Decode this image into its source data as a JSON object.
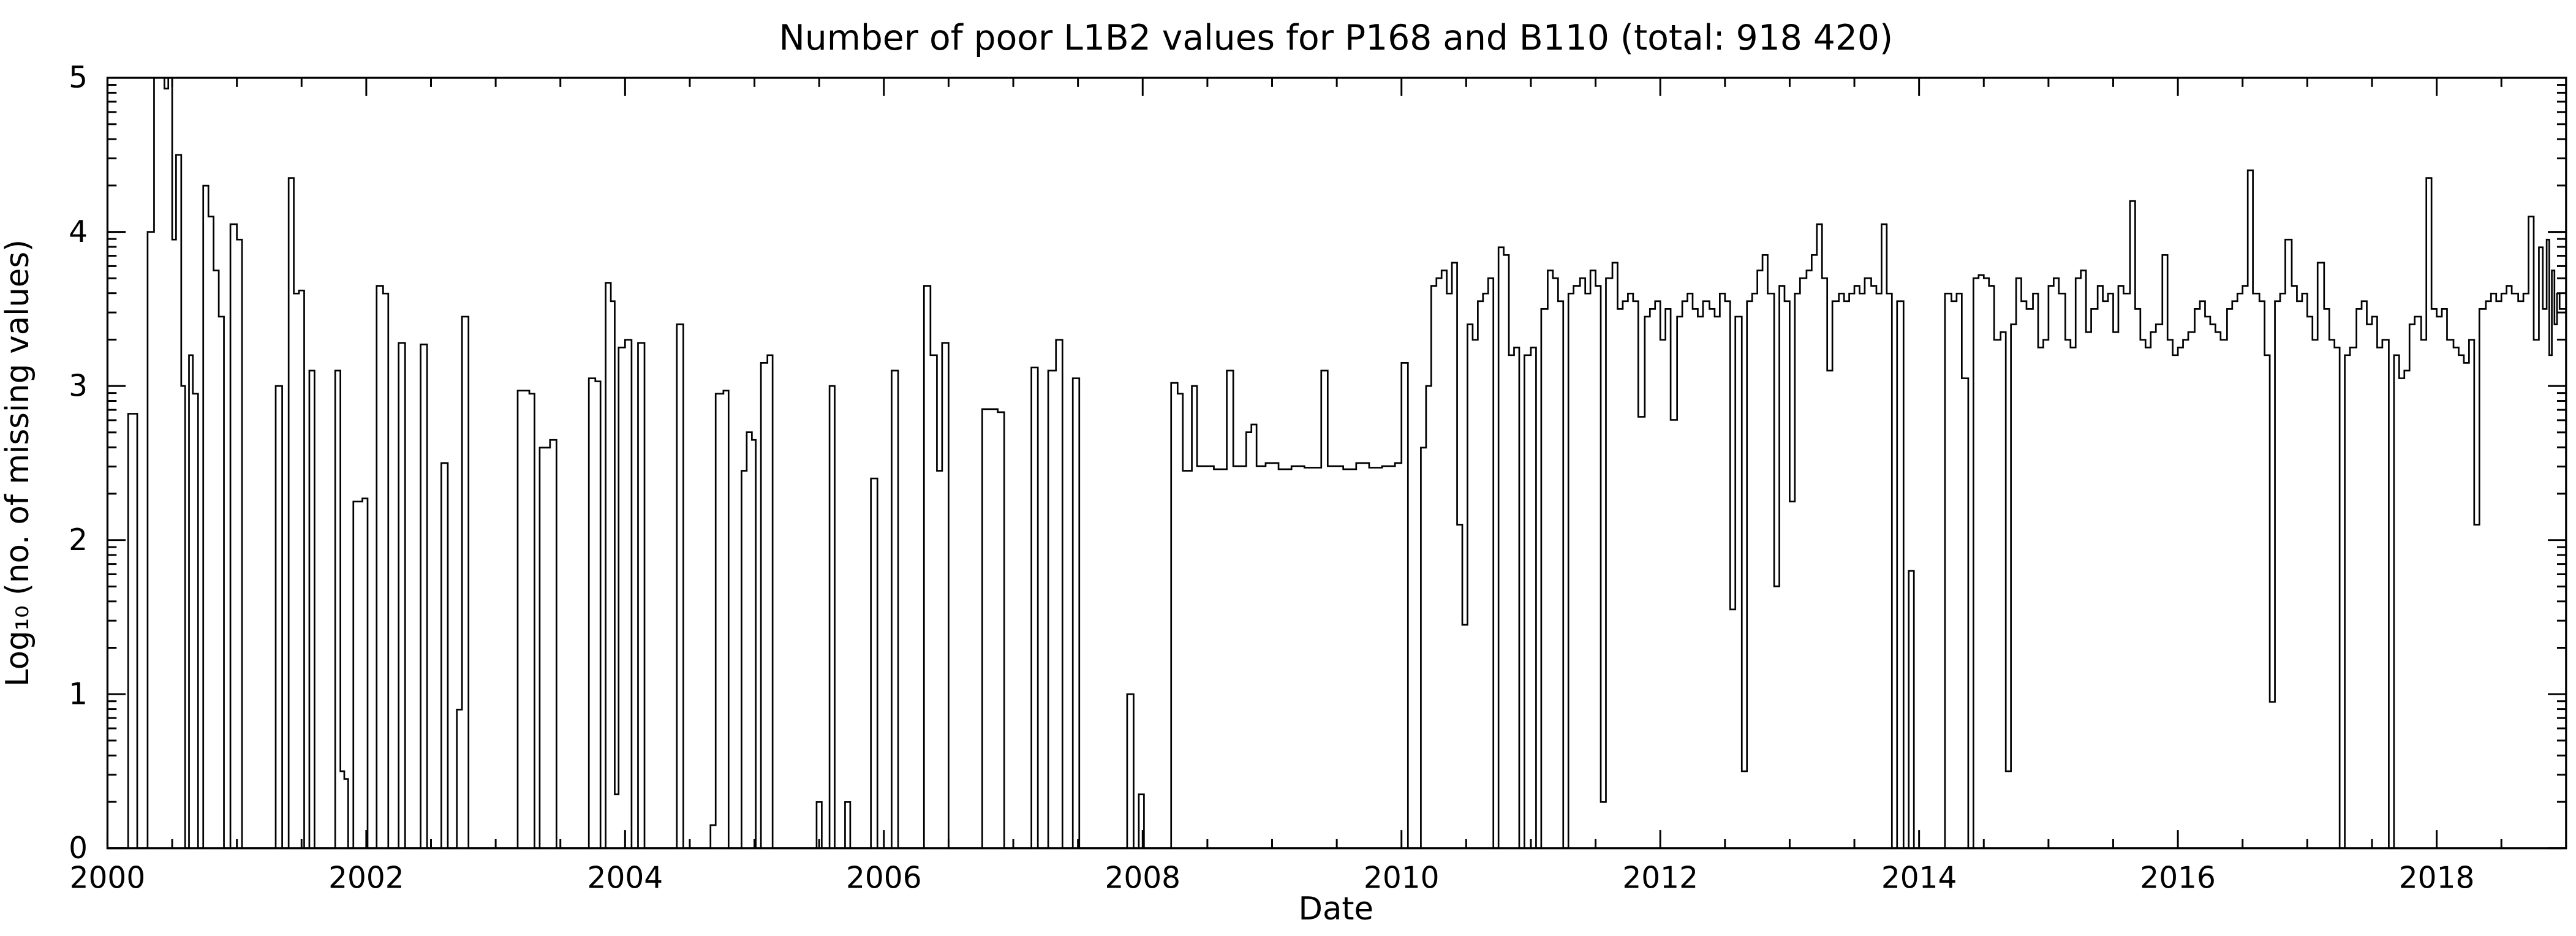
{
  "chart_data": {
    "type": "line",
    "step": "post",
    "title": "Number of poor L1B2 values for P168 and B110 (total: 918 420)",
    "xlabel": "Date",
    "ylabel": "Log10 (no. of missing values)",
    "ylabel_display": "Log₁₀ (no. of missing values)",
    "xlim": [
      2000,
      2019
    ],
    "ylim": [
      0,
      5
    ],
    "xticks": [
      2000,
      2002,
      2004,
      2006,
      2008,
      2010,
      2012,
      2014,
      2016,
      2018
    ],
    "xtick_labels": [
      "2000",
      "2002",
      "2004",
      "2006",
      "2008",
      "2010",
      "2012",
      "2014",
      "2016",
      "2018"
    ],
    "xticks_minor_step": 0.5,
    "yticks": [
      0,
      1,
      2,
      3,
      4,
      5
    ],
    "ytick_labels": [
      "0",
      "1",
      "2",
      "3",
      "4",
      "5"
    ],
    "yticks_minor": "log-decade (n + log10(k), k=2..9)",
    "grid": false,
    "legend": false,
    "tick_direction": "in",
    "background": "#ffffff",
    "line_color": "#000000",
    "points": [
      [
        2000.0,
        0
      ],
      [
        2000.16,
        2.82
      ],
      [
        2000.23,
        0
      ],
      [
        2000.31,
        4.0
      ],
      [
        2000.36,
        5.0
      ],
      [
        2000.44,
        4.93
      ],
      [
        2000.47,
        5.0
      ],
      [
        2000.5,
        3.95
      ],
      [
        2000.53,
        4.5
      ],
      [
        2000.57,
        3.0
      ],
      [
        2000.6,
        0
      ],
      [
        2000.63,
        3.2
      ],
      [
        2000.66,
        2.95
      ],
      [
        2000.7,
        0
      ],
      [
        2000.74,
        4.3
      ],
      [
        2000.78,
        4.1
      ],
      [
        2000.82,
        3.75
      ],
      [
        2000.86,
        3.45
      ],
      [
        2000.9,
        0
      ],
      [
        2000.95,
        4.05
      ],
      [
        2001.0,
        3.95
      ],
      [
        2001.04,
        0
      ],
      [
        2001.3,
        3.0
      ],
      [
        2001.35,
        0
      ],
      [
        2001.4,
        4.35
      ],
      [
        2001.44,
        3.6
      ],
      [
        2001.48,
        3.62
      ],
      [
        2001.52,
        0
      ],
      [
        2001.56,
        3.1
      ],
      [
        2001.6,
        0
      ],
      [
        2001.76,
        3.1
      ],
      [
        2001.8,
        0.5
      ],
      [
        2001.83,
        0.45
      ],
      [
        2001.86,
        0
      ],
      [
        2001.9,
        2.25
      ],
      [
        2001.97,
        2.27
      ],
      [
        2002.01,
        0
      ],
      [
        2002.08,
        3.65
      ],
      [
        2002.13,
        3.6
      ],
      [
        2002.17,
        0
      ],
      [
        2002.25,
        3.28
      ],
      [
        2002.3,
        0
      ],
      [
        2002.42,
        3.27
      ],
      [
        2002.47,
        0
      ],
      [
        2002.58,
        2.5
      ],
      [
        2002.63,
        0
      ],
      [
        2002.7,
        0.9
      ],
      [
        2002.74,
        3.45
      ],
      [
        2002.79,
        0
      ],
      [
        2003.17,
        2.97
      ],
      [
        2003.26,
        2.95
      ],
      [
        2003.3,
        0
      ],
      [
        2003.34,
        2.6
      ],
      [
        2003.42,
        2.65
      ],
      [
        2003.47,
        0
      ],
      [
        2003.72,
        3.05
      ],
      [
        2003.77,
        3.03
      ],
      [
        2003.81,
        0
      ],
      [
        2003.85,
        3.67
      ],
      [
        2003.89,
        3.55
      ],
      [
        2003.92,
        0.35
      ],
      [
        2003.95,
        3.25
      ],
      [
        2004.0,
        3.3
      ],
      [
        2004.05,
        0
      ],
      [
        2004.1,
        3.28
      ],
      [
        2004.15,
        0
      ],
      [
        2004.4,
        3.4
      ],
      [
        2004.45,
        0
      ],
      [
        2004.66,
        0.15
      ],
      [
        2004.7,
        2.95
      ],
      [
        2004.76,
        2.97
      ],
      [
        2004.8,
        0
      ],
      [
        2004.9,
        2.45
      ],
      [
        2004.94,
        2.7
      ],
      [
        2004.98,
        2.65
      ],
      [
        2005.01,
        0
      ],
      [
        2005.05,
        3.15
      ],
      [
        2005.1,
        3.2
      ],
      [
        2005.14,
        0
      ],
      [
        2005.48,
        0.3
      ],
      [
        2005.52,
        0
      ],
      [
        2005.58,
        3.0
      ],
      [
        2005.62,
        0
      ],
      [
        2005.7,
        0.3
      ],
      [
        2005.74,
        0
      ],
      [
        2005.9,
        2.4
      ],
      [
        2005.95,
        0
      ],
      [
        2006.06,
        3.1
      ],
      [
        2006.11,
        0
      ],
      [
        2006.31,
        3.65
      ],
      [
        2006.36,
        3.2
      ],
      [
        2006.41,
        2.45
      ],
      [
        2006.45,
        3.28
      ],
      [
        2006.5,
        0
      ],
      [
        2006.76,
        2.85
      ],
      [
        2006.88,
        2.83
      ],
      [
        2006.93,
        0
      ],
      [
        2007.14,
        3.12
      ],
      [
        2007.19,
        0
      ],
      [
        2007.27,
        3.1
      ],
      [
        2007.33,
        3.3
      ],
      [
        2007.38,
        0
      ],
      [
        2007.46,
        3.05
      ],
      [
        2007.51,
        0
      ],
      [
        2007.88,
        1.0
      ],
      [
        2007.93,
        0
      ],
      [
        2007.97,
        0.35
      ],
      [
        2008.01,
        0
      ],
      [
        2008.22,
        3.02
      ],
      [
        2008.27,
        2.95
      ],
      [
        2008.31,
        2.45
      ],
      [
        2008.38,
        3.0
      ],
      [
        2008.42,
        2.48
      ],
      [
        2008.55,
        2.46
      ],
      [
        2008.65,
        3.1
      ],
      [
        2008.7,
        2.48
      ],
      [
        2008.8,
        2.7
      ],
      [
        2008.84,
        2.75
      ],
      [
        2008.88,
        2.48
      ],
      [
        2008.95,
        2.5
      ],
      [
        2009.05,
        2.46
      ],
      [
        2009.15,
        2.48
      ],
      [
        2009.25,
        2.47
      ],
      [
        2009.38,
        3.1
      ],
      [
        2009.43,
        2.48
      ],
      [
        2009.55,
        2.46
      ],
      [
        2009.65,
        2.5
      ],
      [
        2009.75,
        2.47
      ],
      [
        2009.85,
        2.48
      ],
      [
        2009.95,
        2.5
      ],
      [
        2010.0,
        3.15
      ],
      [
        2010.05,
        0
      ],
      [
        2010.15,
        2.6
      ],
      [
        2010.19,
        3.0
      ],
      [
        2010.23,
        3.65
      ],
      [
        2010.27,
        3.7
      ],
      [
        2010.31,
        3.75
      ],
      [
        2010.35,
        3.6
      ],
      [
        2010.39,
        3.8
      ],
      [
        2010.43,
        2.1
      ],
      [
        2010.47,
        1.45
      ],
      [
        2010.51,
        3.4
      ],
      [
        2010.55,
        3.3
      ],
      [
        2010.59,
        3.55
      ],
      [
        2010.63,
        3.6
      ],
      [
        2010.67,
        3.7
      ],
      [
        2010.71,
        0
      ],
      [
        2010.75,
        3.9
      ],
      [
        2010.79,
        3.85
      ],
      [
        2010.83,
        3.2
      ],
      [
        2010.87,
        3.25
      ],
      [
        2010.91,
        0
      ],
      [
        2010.95,
        3.2
      ],
      [
        2011.0,
        3.25
      ],
      [
        2011.04,
        0
      ],
      [
        2011.08,
        3.5
      ],
      [
        2011.13,
        3.75
      ],
      [
        2011.17,
        3.7
      ],
      [
        2011.21,
        3.55
      ],
      [
        2011.25,
        0
      ],
      [
        2011.29,
        3.6
      ],
      [
        2011.33,
        3.65
      ],
      [
        2011.38,
        3.7
      ],
      [
        2011.42,
        3.6
      ],
      [
        2011.46,
        3.75
      ],
      [
        2011.5,
        3.65
      ],
      [
        2011.54,
        0.3
      ],
      [
        2011.58,
        3.7
      ],
      [
        2011.63,
        3.8
      ],
      [
        2011.67,
        3.5
      ],
      [
        2011.71,
        3.55
      ],
      [
        2011.75,
        3.6
      ],
      [
        2011.79,
        3.55
      ],
      [
        2011.83,
        2.8
      ],
      [
        2011.88,
        3.45
      ],
      [
        2011.92,
        3.5
      ],
      [
        2011.96,
        3.55
      ],
      [
        2012.0,
        3.3
      ],
      [
        2012.04,
        3.5
      ],
      [
        2012.08,
        2.78
      ],
      [
        2012.13,
        3.45
      ],
      [
        2012.17,
        3.55
      ],
      [
        2012.21,
        3.6
      ],
      [
        2012.25,
        3.5
      ],
      [
        2012.29,
        3.45
      ],
      [
        2012.33,
        3.55
      ],
      [
        2012.38,
        3.5
      ],
      [
        2012.42,
        3.45
      ],
      [
        2012.46,
        3.6
      ],
      [
        2012.5,
        3.55
      ],
      [
        2012.54,
        1.55
      ],
      [
        2012.58,
        3.45
      ],
      [
        2012.63,
        0.5
      ],
      [
        2012.67,
        3.55
      ],
      [
        2012.71,
        3.6
      ],
      [
        2012.75,
        3.75
      ],
      [
        2012.79,
        3.85
      ],
      [
        2012.83,
        3.6
      ],
      [
        2012.88,
        1.7
      ],
      [
        2012.92,
        3.65
      ],
      [
        2012.96,
        3.55
      ],
      [
        2013.0,
        2.25
      ],
      [
        2013.04,
        3.6
      ],
      [
        2013.08,
        3.7
      ],
      [
        2013.13,
        3.75
      ],
      [
        2013.17,
        3.85
      ],
      [
        2013.21,
        4.05
      ],
      [
        2013.25,
        3.7
      ],
      [
        2013.29,
        3.1
      ],
      [
        2013.33,
        3.55
      ],
      [
        2013.38,
        3.6
      ],
      [
        2013.42,
        3.55
      ],
      [
        2013.46,
        3.6
      ],
      [
        2013.5,
        3.65
      ],
      [
        2013.54,
        3.6
      ],
      [
        2013.58,
        3.7
      ],
      [
        2013.63,
        3.65
      ],
      [
        2013.67,
        3.6
      ],
      [
        2013.71,
        4.05
      ],
      [
        2013.75,
        3.6
      ],
      [
        2013.79,
        0
      ],
      [
        2013.83,
        3.55
      ],
      [
        2013.88,
        0
      ],
      [
        2013.92,
        1.8
      ],
      [
        2013.96,
        0
      ],
      [
        2014.2,
        3.6
      ],
      [
        2014.25,
        3.55
      ],
      [
        2014.29,
        3.6
      ],
      [
        2014.33,
        3.05
      ],
      [
        2014.38,
        0
      ],
      [
        2014.42,
        3.7
      ],
      [
        2014.46,
        3.72
      ],
      [
        2014.5,
        3.7
      ],
      [
        2014.54,
        3.65
      ],
      [
        2014.58,
        3.3
      ],
      [
        2014.63,
        3.35
      ],
      [
        2014.67,
        0.5
      ],
      [
        2014.71,
        3.4
      ],
      [
        2014.75,
        3.7
      ],
      [
        2014.79,
        3.55
      ],
      [
        2014.83,
        3.5
      ],
      [
        2014.88,
        3.6
      ],
      [
        2014.92,
        3.25
      ],
      [
        2014.96,
        3.3
      ],
      [
        2015.0,
        3.65
      ],
      [
        2015.04,
        3.7
      ],
      [
        2015.08,
        3.6
      ],
      [
        2015.13,
        3.3
      ],
      [
        2015.17,
        3.25
      ],
      [
        2015.21,
        3.7
      ],
      [
        2015.25,
        3.75
      ],
      [
        2015.29,
        3.35
      ],
      [
        2015.33,
        3.5
      ],
      [
        2015.38,
        3.65
      ],
      [
        2015.42,
        3.55
      ],
      [
        2015.46,
        3.6
      ],
      [
        2015.5,
        3.35
      ],
      [
        2015.54,
        3.65
      ],
      [
        2015.58,
        3.6
      ],
      [
        2015.63,
        4.2
      ],
      [
        2015.67,
        3.5
      ],
      [
        2015.71,
        3.3
      ],
      [
        2015.75,
        3.25
      ],
      [
        2015.79,
        3.35
      ],
      [
        2015.83,
        3.4
      ],
      [
        2015.88,
        3.85
      ],
      [
        2015.92,
        3.3
      ],
      [
        2015.96,
        3.2
      ],
      [
        2016.0,
        3.25
      ],
      [
        2016.04,
        3.3
      ],
      [
        2016.08,
        3.35
      ],
      [
        2016.13,
        3.5
      ],
      [
        2016.17,
        3.55
      ],
      [
        2016.21,
        3.45
      ],
      [
        2016.25,
        3.4
      ],
      [
        2016.29,
        3.35
      ],
      [
        2016.33,
        3.3
      ],
      [
        2016.38,
        3.5
      ],
      [
        2016.42,
        3.55
      ],
      [
        2016.46,
        3.6
      ],
      [
        2016.5,
        3.65
      ],
      [
        2016.54,
        4.4
      ],
      [
        2016.58,
        3.6
      ],
      [
        2016.63,
        3.55
      ],
      [
        2016.67,
        3.2
      ],
      [
        2016.71,
        0.95
      ],
      [
        2016.75,
        3.55
      ],
      [
        2016.79,
        3.6
      ],
      [
        2016.83,
        3.95
      ],
      [
        2016.88,
        3.65
      ],
      [
        2016.92,
        3.55
      ],
      [
        2016.96,
        3.6
      ],
      [
        2017.0,
        3.45
      ],
      [
        2017.04,
        3.3
      ],
      [
        2017.08,
        3.8
      ],
      [
        2017.13,
        3.5
      ],
      [
        2017.17,
        3.3
      ],
      [
        2017.21,
        3.25
      ],
      [
        2017.25,
        0
      ],
      [
        2017.29,
        3.2
      ],
      [
        2017.33,
        3.25
      ],
      [
        2017.38,
        3.5
      ],
      [
        2017.42,
        3.55
      ],
      [
        2017.46,
        3.4
      ],
      [
        2017.5,
        3.45
      ],
      [
        2017.54,
        3.25
      ],
      [
        2017.58,
        3.3
      ],
      [
        2017.63,
        0
      ],
      [
        2017.67,
        3.2
      ],
      [
        2017.71,
        3.05
      ],
      [
        2017.75,
        3.1
      ],
      [
        2017.79,
        3.4
      ],
      [
        2017.83,
        3.45
      ],
      [
        2017.88,
        3.3
      ],
      [
        2017.92,
        4.35
      ],
      [
        2017.96,
        3.5
      ],
      [
        2018.0,
        3.45
      ],
      [
        2018.04,
        3.5
      ],
      [
        2018.08,
        3.3
      ],
      [
        2018.13,
        3.25
      ],
      [
        2018.17,
        3.2
      ],
      [
        2018.21,
        3.15
      ],
      [
        2018.25,
        3.3
      ],
      [
        2018.29,
        2.1
      ],
      [
        2018.33,
        3.5
      ],
      [
        2018.38,
        3.55
      ],
      [
        2018.42,
        3.6
      ],
      [
        2018.46,
        3.55
      ],
      [
        2018.5,
        3.6
      ],
      [
        2018.54,
        3.65
      ],
      [
        2018.58,
        3.6
      ],
      [
        2018.63,
        3.55
      ],
      [
        2018.67,
        3.6
      ],
      [
        2018.71,
        4.1
      ],
      [
        2018.75,
        3.3
      ],
      [
        2018.79,
        3.9
      ],
      [
        2018.82,
        3.5
      ],
      [
        2018.85,
        3.95
      ],
      [
        2018.87,
        3.2
      ],
      [
        2018.89,
        3.75
      ],
      [
        2018.91,
        3.4
      ],
      [
        2018.93,
        3.6
      ],
      [
        2018.95,
        3.5
      ]
    ]
  }
}
